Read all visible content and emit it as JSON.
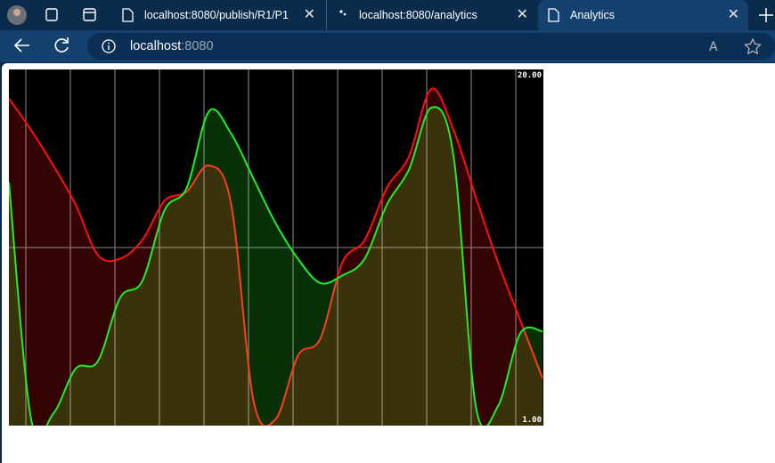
{
  "browser": {
    "tabs": [
      {
        "title": "localhost:8080/publish/R1/P1"
      },
      {
        "title": "localhost:8080/analytics"
      },
      {
        "title": "Analytics"
      }
    ],
    "address": {
      "host": "localhost",
      "port": ":8080"
    }
  },
  "chart_data": {
    "type": "line",
    "ylim": [
      1,
      20
    ],
    "yticks": [
      {
        "value": 20,
        "label": "20.00"
      },
      {
        "value": 1,
        "label": "1.00"
      }
    ],
    "series": [
      {
        "color": "#ff1010",
        "values": [
          18.5,
          16.8,
          14.9,
          12.8,
          10.1,
          9.9,
          10.9,
          13.0,
          13.5,
          14.9,
          12.8,
          2.3,
          1.3,
          4.7,
          5.6,
          9.7,
          10.9,
          13.7,
          15.4,
          19.0,
          16.8,
          13.2,
          9.7,
          6.6,
          3.5
        ]
      },
      {
        "color": "#22ee22",
        "values": [
          14.0,
          1.3,
          1.6,
          4.0,
          4.4,
          7.8,
          8.7,
          12.5,
          13.7,
          17.8,
          16.6,
          14.2,
          11.8,
          9.9,
          8.6,
          9.0,
          9.9,
          12.8,
          14.7,
          18.0,
          15.4,
          2.0,
          2.0,
          5.9,
          6.0
        ]
      }
    ]
  }
}
